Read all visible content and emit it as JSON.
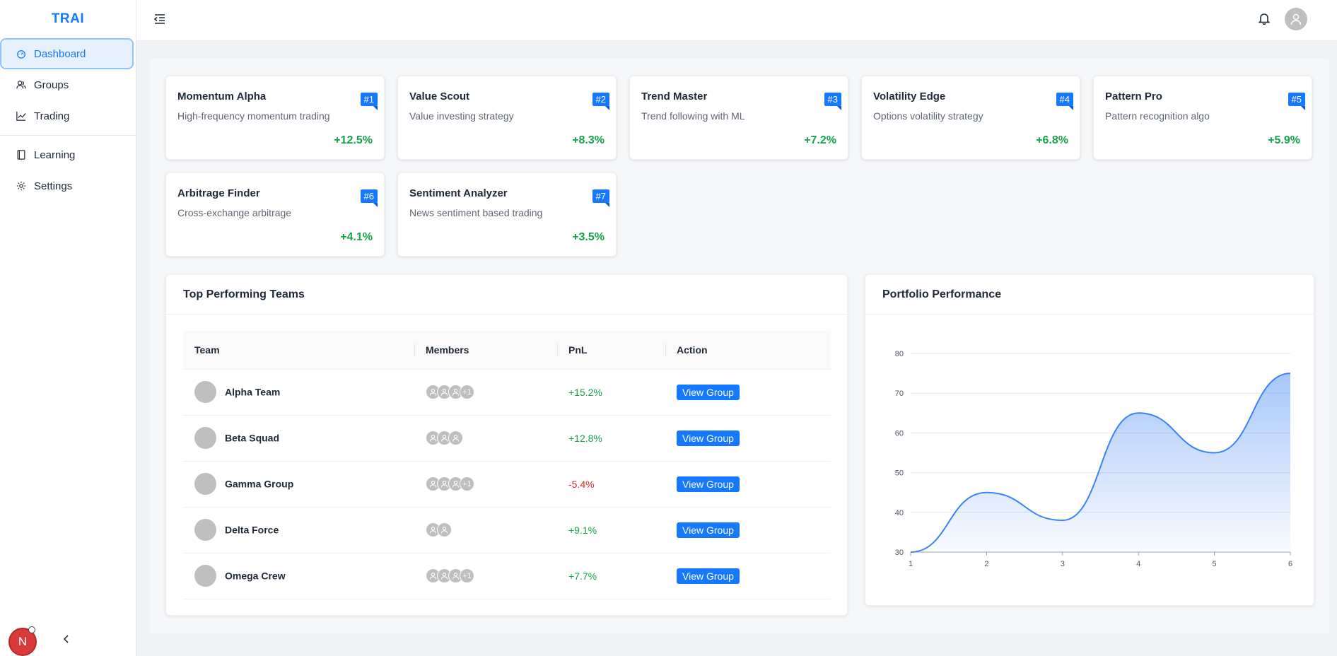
{
  "app": {
    "brand": "TRAI"
  },
  "sidebar": {
    "items": [
      {
        "label": "Dashboard",
        "icon": "dashboard-icon"
      },
      {
        "label": "Groups",
        "icon": "groups-icon"
      },
      {
        "label": "Trading",
        "icon": "trading-chart-icon"
      },
      {
        "label": "Learning",
        "icon": "book-icon"
      },
      {
        "label": "Settings",
        "icon": "gear-icon"
      }
    ],
    "user_initial": "N"
  },
  "strategies": [
    {
      "title": "Momentum Alpha",
      "desc": "High-frequency momentum trading",
      "pct": "+12.5%",
      "rank": "#1"
    },
    {
      "title": "Value Scout",
      "desc": "Value investing strategy",
      "pct": "+8.3%",
      "rank": "#2"
    },
    {
      "title": "Trend Master",
      "desc": "Trend following with ML",
      "pct": "+7.2%",
      "rank": "#3"
    },
    {
      "title": "Volatility Edge",
      "desc": "Options volatility strategy",
      "pct": "+6.8%",
      "rank": "#4"
    },
    {
      "title": "Pattern Pro",
      "desc": "Pattern recognition algo",
      "pct": "+5.9%",
      "rank": "#5"
    },
    {
      "title": "Arbitrage Finder",
      "desc": "Cross-exchange arbitrage",
      "pct": "+4.1%",
      "rank": "#6"
    },
    {
      "title": "Sentiment Analyzer",
      "desc": "News sentiment based trading",
      "pct": "+3.5%",
      "rank": "#7"
    }
  ],
  "teams_panel": {
    "title": "Top Performing Teams",
    "columns": [
      "Team",
      "Members",
      "PnL",
      "Action"
    ],
    "rows": [
      {
        "team": "Alpha Team",
        "members": 3,
        "extra": "+1",
        "pnl": "+15.2%",
        "action": "View Group"
      },
      {
        "team": "Beta Squad",
        "members": 3,
        "extra": "",
        "pnl": "+12.8%",
        "action": "View Group"
      },
      {
        "team": "Gamma Group",
        "members": 3,
        "extra": "+1",
        "pnl": "-5.4%",
        "action": "View Group"
      },
      {
        "team": "Delta Force",
        "members": 2,
        "extra": "",
        "pnl": "+9.1%",
        "action": "View Group"
      },
      {
        "team": "Omega Crew",
        "members": 3,
        "extra": "+1",
        "pnl": "+7.7%",
        "action": "View Group"
      }
    ]
  },
  "chart_panel": {
    "title": "Portfolio Performance"
  },
  "chart_data": {
    "type": "area",
    "x": [
      1,
      2,
      3,
      4,
      5,
      6
    ],
    "values": [
      30,
      45,
      38,
      65,
      55,
      75
    ],
    "ylim": [
      30,
      80
    ],
    "yticks": [
      30,
      40,
      50,
      60,
      70,
      80
    ],
    "xticks": [
      1,
      2,
      3,
      4,
      5,
      6
    ],
    "grid": true,
    "color": "#3b82f6"
  },
  "colors": {
    "accent": "#1677ff",
    "positive": "#16a34a",
    "negative": "#dc2626"
  }
}
